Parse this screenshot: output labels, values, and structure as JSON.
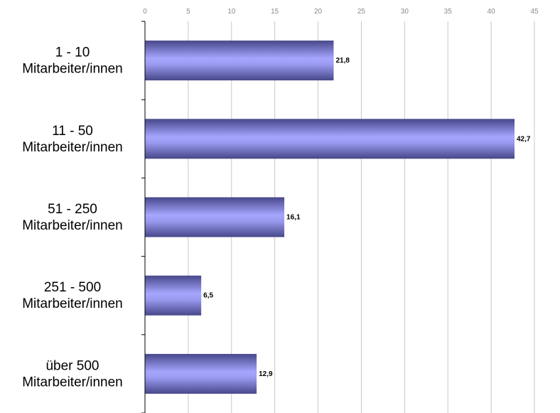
{
  "chart_data": {
    "type": "bar",
    "orientation": "horizontal",
    "categories": [
      [
        "1 - 10",
        "Mitarbeiter/innen"
      ],
      [
        "11 - 50",
        "Mitarbeiter/innen"
      ],
      [
        "51 - 250",
        "Mitarbeiter/innen"
      ],
      [
        "251 - 500",
        "Mitarbeiter/innen"
      ],
      [
        "über 500",
        "Mitarbeiter/innen"
      ]
    ],
    "values": [
      21.8,
      42.7,
      16.1,
      6.5,
      12.9
    ],
    "value_labels": [
      "21,8",
      "42,7",
      "16,1",
      "6,5",
      "12,9"
    ],
    "xlim": [
      0,
      45
    ],
    "xticks": [
      0,
      5,
      10,
      15,
      20,
      25,
      30,
      35,
      40,
      45
    ],
    "x_axis_position": "top",
    "grid": true,
    "title": "",
    "xlabel": "",
    "ylabel": "",
    "colors": {
      "bar_mid": "#a6a6ff",
      "bar_edge": "#47478a",
      "grid": "#c8c8c8",
      "tick_text": "#8a8a8a"
    }
  }
}
